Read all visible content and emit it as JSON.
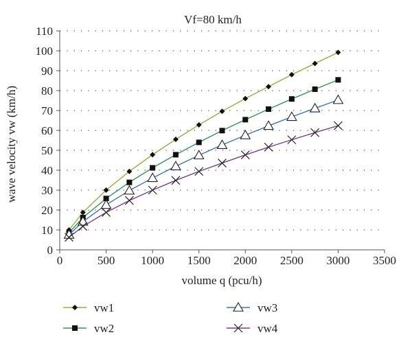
{
  "chart_data": {
    "type": "line",
    "title": "Vf=80 km/h",
    "xlabel": "volume q (pcu/h)",
    "ylabel": "wave velocity vw (km/h)",
    "xlim": [
      0,
      3500
    ],
    "ylim": [
      0,
      110
    ],
    "xticks": [
      0,
      500,
      1000,
      1500,
      2000,
      2500,
      3000,
      3500
    ],
    "yticks": [
      0,
      10,
      20,
      30,
      40,
      50,
      60,
      70,
      80,
      90,
      100,
      110
    ],
    "grid": "dotted horizontal",
    "legend_position": "bottom",
    "x": [
      100,
      250,
      500,
      750,
      1000,
      1250,
      1500,
      1750,
      2000,
      2250,
      2500,
      2750,
      3000
    ],
    "series": [
      {
        "name": "vw1",
        "color": "#8db33a",
        "marker": "diamond",
        "values": [
          10.0,
          18.8,
          30.0,
          39.4,
          47.8,
          55.5,
          62.8,
          69.6,
          76.0,
          82.0,
          88.0,
          93.6,
          99.2
        ]
      },
      {
        "name": "vw2",
        "color": "#2e9a4c",
        "marker": "square",
        "values": [
          8.6,
          16.2,
          25.8,
          33.9,
          41.2,
          47.8,
          54.0,
          59.9,
          65.4,
          70.7,
          75.8,
          80.7,
          85.4
        ]
      },
      {
        "name": "vw3",
        "color": "#3c74b8",
        "marker": "triangle-open",
        "values": [
          7.6,
          14.2,
          22.6,
          29.8,
          36.1,
          42.0,
          47.5,
          52.7,
          57.6,
          62.3,
          66.8,
          71.1,
          75.3
        ]
      },
      {
        "name": "vw4",
        "color": "#7a3f8c",
        "marker": "x",
        "values": [
          6.3,
          11.8,
          18.8,
          24.8,
          30.0,
          34.9,
          39.4,
          43.6,
          47.7,
          51.6,
          55.3,
          58.9,
          62.4
        ]
      }
    ]
  }
}
